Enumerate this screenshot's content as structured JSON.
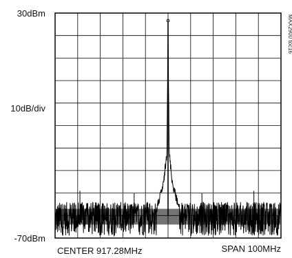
{
  "figure_id": "MAX2900 toc16",
  "chart_data": {
    "type": "line",
    "title": "",
    "y_top_label": "30dBm",
    "y_mid_label": "10dB/div",
    "y_bottom_label": "-70dBm",
    "x_left_label": "CENTER 917.28MHz",
    "x_right_label": "SPAN 100MHz",
    "ylim": [
      -70,
      30
    ],
    "y_unit": "dBm",
    "y_scale_db_per_div": 10,
    "center_mhz": 917.28,
    "span_mhz": 100,
    "grid": true,
    "grid_divisions_x": 10,
    "grid_divisions_y": 10,
    "series": [
      {
        "values": {
          "peak": {
            "x_mhz": 917.28,
            "y_dbm": 26
          },
          "noise_floor_dbm": -60,
          "noise_floor_range_dbm": [
            -69,
            -54
          ],
          "skirt_points": [
            {
              "x_mhz": 912.28,
              "y_dbm": -55
            },
            {
              "x_mhz": 915.28,
              "y_dbm": -44
            },
            {
              "x_mhz": 916.78,
              "y_dbm": -30
            },
            {
              "x_mhz": 917.28,
              "y_dbm": 26
            },
            {
              "x_mhz": 917.78,
              "y_dbm": -30
            },
            {
              "x_mhz": 919.28,
              "y_dbm": -44
            },
            {
              "x_mhz": 922.28,
              "y_dbm": -55
            }
          ],
          "spurs": [
            {
              "x_mhz": 878.28,
              "y_dbm": -49
            },
            {
              "x_mhz": 902.28,
              "y_dbm": -50
            },
            {
              "x_mhz": 932.28,
              "y_dbm": -50
            },
            {
              "x_mhz": 955.28,
              "y_dbm": -49
            }
          ]
        }
      }
    ]
  }
}
